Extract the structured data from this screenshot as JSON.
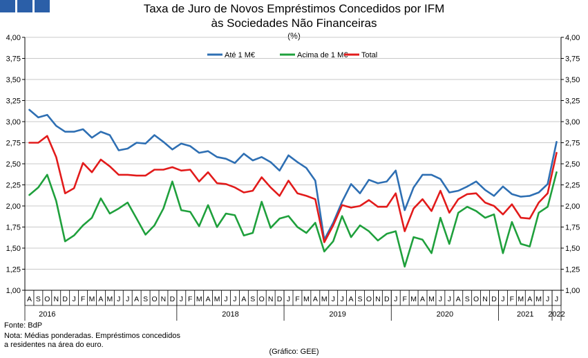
{
  "header": {
    "title_line1": "Taxa de Juro de Novos Empréstimos Concedidos por IFM",
    "title_line2": "às Sociedades Não Financeiras",
    "unit": "(%)"
  },
  "footer": {
    "source": "Fonte: BdP",
    "note_line1": "Nota: Médias ponderadas. Empréstimos concedidos",
    "note_line2": "a residentes na área do euro.",
    "credit": "(Gráfico: GEE)"
  },
  "chart_data": {
    "type": "line",
    "ylim": [
      1.0,
      4.0
    ],
    "ytick_labels": [
      "1,00",
      "1,25",
      "1,50",
      "1,75",
      "2,00",
      "2,25",
      "2,50",
      "2,75",
      "3,00",
      "3,25",
      "3,50",
      "3,75",
      "4,00"
    ],
    "x_month_labels": [
      "A",
      "S",
      "O",
      "N",
      "D",
      "J",
      "F",
      "M",
      "A",
      "M",
      "J",
      "J",
      "A",
      "S",
      "O",
      "N",
      "D",
      "J",
      "F",
      "M",
      "A",
      "M",
      "J",
      "J",
      "A",
      "S",
      "O",
      "N",
      "D",
      "J",
      "F",
      "M",
      "A",
      "M",
      "J",
      "J",
      "A",
      "S",
      "O",
      "N",
      "D",
      "J",
      "F",
      "M",
      "A",
      "M",
      "J",
      "J",
      "A",
      "S",
      "O",
      "N",
      "D",
      "J",
      "F",
      "M",
      "A",
      "M",
      "J",
      "J"
    ],
    "x_year_labels": [
      "2016",
      "2018",
      "2019",
      "2020",
      "2021",
      "2022"
    ],
    "year_spans": [
      [
        0,
        5
      ],
      [
        17,
        29
      ],
      [
        29,
        41
      ],
      [
        41,
        53
      ],
      [
        53,
        59
      ],
      [
        59,
        60
      ]
    ],
    "grid": true,
    "legend_position": "top-center",
    "series": [
      {
        "name": "Até 1 M€",
        "color": "#2e6fb3",
        "values": [
          3.14,
          3.05,
          3.08,
          2.95,
          2.88,
          2.88,
          2.91,
          2.81,
          2.88,
          2.84,
          2.66,
          2.68,
          2.75,
          2.74,
          2.84,
          2.76,
          2.67,
          2.74,
          2.71,
          2.63,
          2.65,
          2.58,
          2.56,
          2.51,
          2.62,
          2.54,
          2.58,
          2.52,
          2.42,
          2.6,
          2.52,
          2.45,
          2.3,
          1.6,
          1.8,
          2.05,
          2.26,
          2.15,
          2.31,
          2.27,
          2.29,
          2.42,
          1.95,
          2.22,
          2.37,
          2.37,
          2.32,
          2.16,
          2.18,
          2.23,
          2.29,
          2.19,
          2.12,
          2.23,
          2.14,
          2.11,
          2.12,
          2.16,
          2.26,
          2.76
        ]
      },
      {
        "name": "Acima de 1 M€",
        "color": "#1fa03c",
        "values": [
          2.13,
          2.22,
          2.37,
          2.06,
          1.58,
          1.65,
          1.77,
          1.86,
          2.09,
          1.91,
          1.97,
          2.04,
          1.85,
          1.66,
          1.77,
          1.97,
          2.29,
          1.95,
          1.93,
          1.76,
          2.01,
          1.75,
          1.91,
          1.89,
          1.65,
          1.68,
          2.05,
          1.74,
          1.85,
          1.88,
          1.75,
          1.68,
          1.8,
          1.46,
          1.58,
          1.88,
          1.63,
          1.77,
          1.7,
          1.59,
          1.67,
          1.7,
          1.28,
          1.63,
          1.6,
          1.44,
          1.86,
          1.55,
          1.92,
          1.99,
          1.94,
          1.86,
          1.9,
          1.44,
          1.81,
          1.55,
          1.52,
          1.92,
          1.99,
          2.4
        ]
      },
      {
        "name": "Total",
        "color": "#e21b1b",
        "values": [
          2.75,
          2.75,
          2.83,
          2.58,
          2.15,
          2.21,
          2.51,
          2.4,
          2.55,
          2.47,
          2.37,
          2.37,
          2.36,
          2.36,
          2.43,
          2.43,
          2.46,
          2.42,
          2.43,
          2.29,
          2.4,
          2.27,
          2.26,
          2.22,
          2.16,
          2.18,
          2.34,
          2.22,
          2.12,
          2.3,
          2.15,
          2.12,
          2.08,
          1.57,
          1.77,
          2.01,
          1.98,
          2.0,
          2.07,
          1.99,
          1.99,
          2.15,
          1.7,
          1.97,
          2.08,
          1.94,
          2.18,
          1.92,
          2.08,
          2.14,
          2.15,
          2.04,
          2.0,
          1.9,
          2.02,
          1.86,
          1.85,
          2.04,
          2.15,
          2.63
        ]
      }
    ]
  }
}
